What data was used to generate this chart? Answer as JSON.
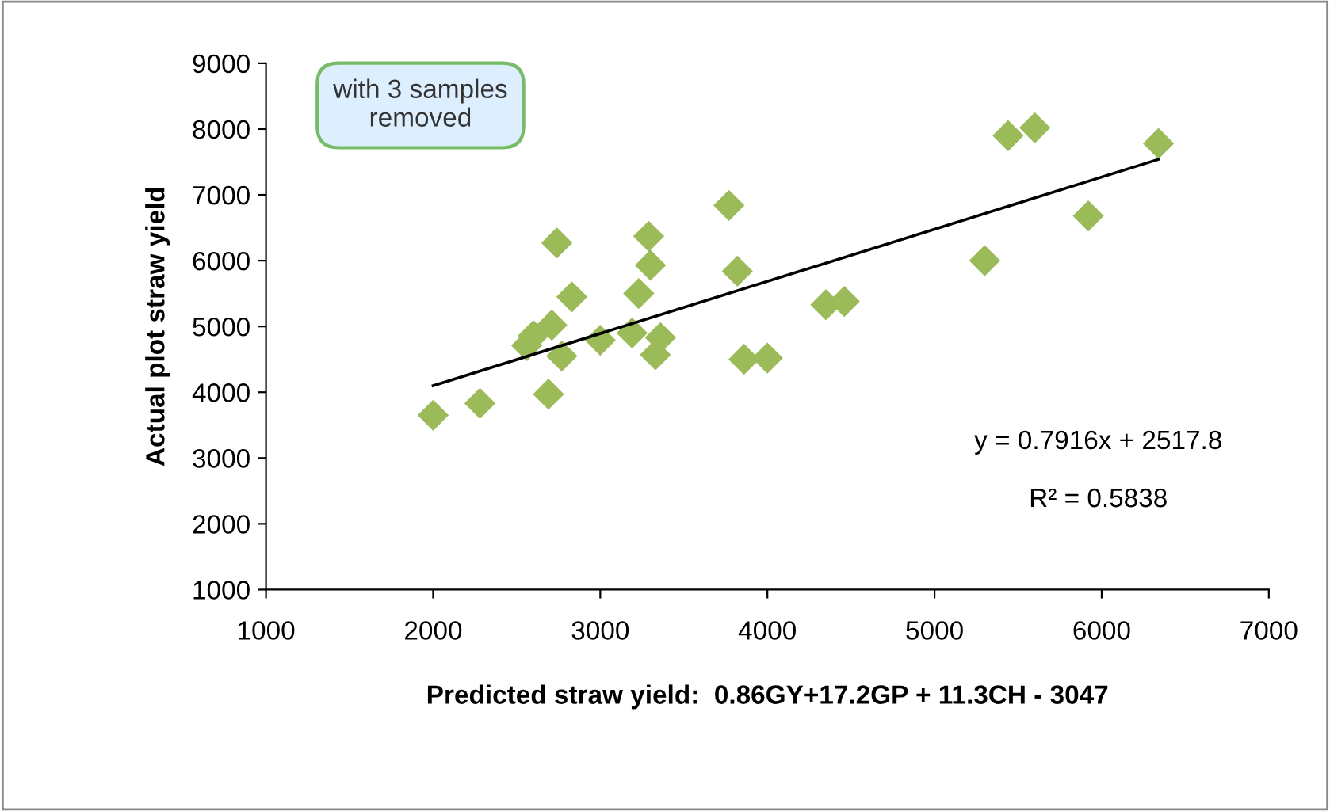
{
  "chart_data": {
    "type": "scatter",
    "xlabel": "Predicted straw yield:  0.86GY+17.2GP + 11.3CH - 3047",
    "ylabel": "Actual plot straw yield",
    "annotations": [
      "with 3 samples\nremoved",
      "y = 0.7916x + 2517.8",
      "R² = 0.5838"
    ],
    "xlim": [
      1000,
      7000
    ],
    "xticks": [
      1000,
      2000,
      3000,
      4000,
      5000,
      6000,
      7000
    ],
    "ylim": [
      1000,
      9000
    ],
    "yticks": [
      1000,
      2000,
      3000,
      4000,
      5000,
      6000,
      7000,
      8000,
      9000
    ],
    "grid": false,
    "legend": false,
    "series": [
      {
        "color": "#9bbb59",
        "marker": "diamond",
        "x": [
          2000,
          2280,
          2690,
          2740,
          2830,
          2710,
          2600,
          2560,
          2770,
          3000,
          3190,
          3230,
          3290,
          3300,
          3360,
          3330,
          3820,
          3860,
          4000,
          3770,
          4350,
          4460,
          5300,
          5440,
          5600,
          5920,
          6340
        ],
        "values": [
          3650,
          3830,
          3970,
          6270,
          5450,
          5020,
          4860,
          4710,
          4550,
          4790,
          4900,
          5500,
          6370,
          5930,
          4830,
          4570,
          5840,
          4500,
          4520,
          6840,
          5330,
          5380,
          6000,
          7900,
          8020,
          6680,
          7780
        ]
      },
      {
        "type": "line",
        "color": "#000000",
        "marker": "none",
        "line_style": "solid",
        "x": [
          2000,
          6340
        ],
        "values": [
          4100,
          7540
        ]
      }
    ]
  }
}
